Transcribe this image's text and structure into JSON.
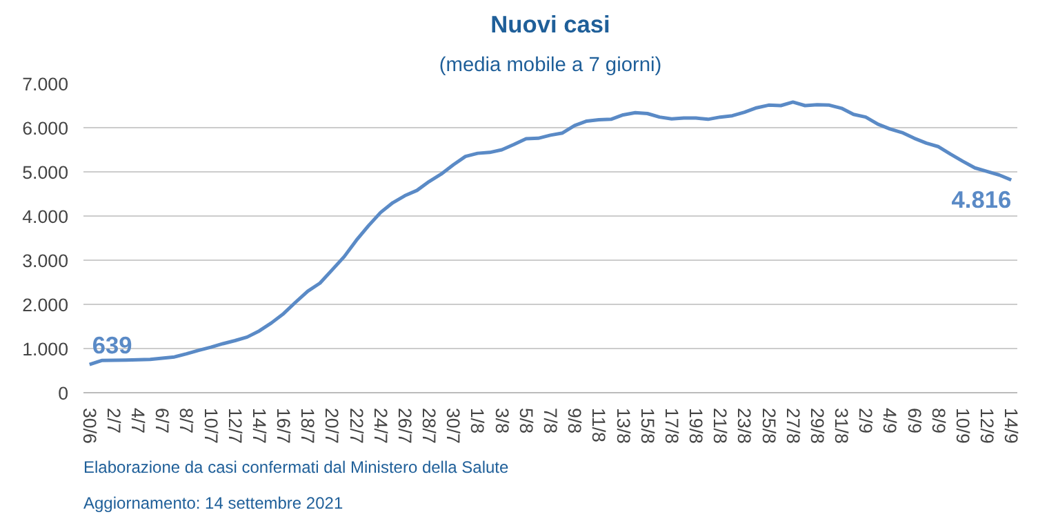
{
  "chart_data": {
    "type": "line",
    "title": "Nuovi casi",
    "subtitle": "(media mobile a 7 giorni)",
    "categories": [
      "30/6",
      null,
      "2/7",
      null,
      "4/7",
      null,
      "6/7",
      null,
      "8/7",
      null,
      "10/7",
      null,
      "12/7",
      null,
      "14/7",
      null,
      "16/7",
      null,
      "18/7",
      null,
      "20/7",
      null,
      "22/7",
      null,
      "24/7",
      null,
      "26/7",
      null,
      "28/7",
      null,
      "30/7",
      null,
      "1/8",
      null,
      "3/8",
      null,
      "5/8",
      null,
      "7/8",
      null,
      "9/8",
      null,
      "11/8",
      null,
      "13/8",
      null,
      "15/8",
      null,
      "17/8",
      null,
      "19/8",
      null,
      "21/8",
      null,
      "23/8",
      null,
      "25/8",
      null,
      "27/8",
      null,
      "29/8",
      null,
      "31/8",
      null,
      "2/9",
      null,
      "4/9",
      null,
      "6/9",
      null,
      "8/9",
      null,
      "10/9",
      null,
      "12/9",
      null,
      "14/9"
    ],
    "series": [
      {
        "color": "#5a8ac6",
        "values": [
          639,
          730,
          735,
          740,
          745,
          755,
          780,
          810,
          880,
          960,
          1030,
          1110,
          1180,
          1260,
          1400,
          1580,
          1790,
          2050,
          2300,
          2480,
          2780,
          3080,
          3450,
          3780,
          4080,
          4300,
          4460,
          4580,
          4780,
          4950,
          5160,
          5350,
          5420,
          5440,
          5500,
          5620,
          5750,
          5760,
          5830,
          5880,
          6050,
          6150,
          6180,
          6190,
          6290,
          6340,
          6320,
          6240,
          6200,
          6220,
          6220,
          6190,
          6240,
          6270,
          6350,
          6450,
          6510,
          6500,
          6580,
          6500,
          6520,
          6510,
          6440,
          6300,
          6240,
          6080,
          5970,
          5890,
          5760,
          5650,
          5570,
          5400,
          5240,
          5090,
          5010,
          4930,
          4816
        ],
        "value_labels": [
          "639",
          null,
          null,
          null,
          null,
          null,
          null,
          null,
          null,
          null,
          null,
          null,
          null,
          null,
          null,
          null,
          null,
          null,
          null,
          null,
          null,
          null,
          null,
          null,
          null,
          null,
          null,
          null,
          null,
          null,
          null,
          null,
          null,
          null,
          null,
          null,
          null,
          null,
          null,
          null,
          null,
          null,
          null,
          null,
          null,
          null,
          null,
          null,
          null,
          null,
          null,
          null,
          null,
          null,
          null,
          null,
          null,
          null,
          null,
          null,
          null,
          null,
          null,
          null,
          null,
          null,
          null,
          null,
          null,
          null,
          null,
          null,
          null,
          null,
          null,
          null,
          "4.816"
        ]
      }
    ],
    "ylim": [
      0,
      7000
    ],
    "yticks": [
      {
        "value": 0,
        "label": "0"
      },
      {
        "value": 1000,
        "label": "1.000"
      },
      {
        "value": 2000,
        "label": "2.000"
      },
      {
        "value": 3000,
        "label": "3.000"
      },
      {
        "value": 4000,
        "label": "4.000"
      },
      {
        "value": 5000,
        "label": "5.000"
      },
      {
        "value": 6000,
        "label": "6.000"
      },
      {
        "value": 7000,
        "label": "7.000"
      }
    ],
    "grid": "y",
    "marker": "none",
    "line_style": "solid",
    "annotations": [
      "Elaborazione da casi confermati dal Ministero della Salute",
      "Aggiornamento: 14 settembre 2021"
    ]
  }
}
